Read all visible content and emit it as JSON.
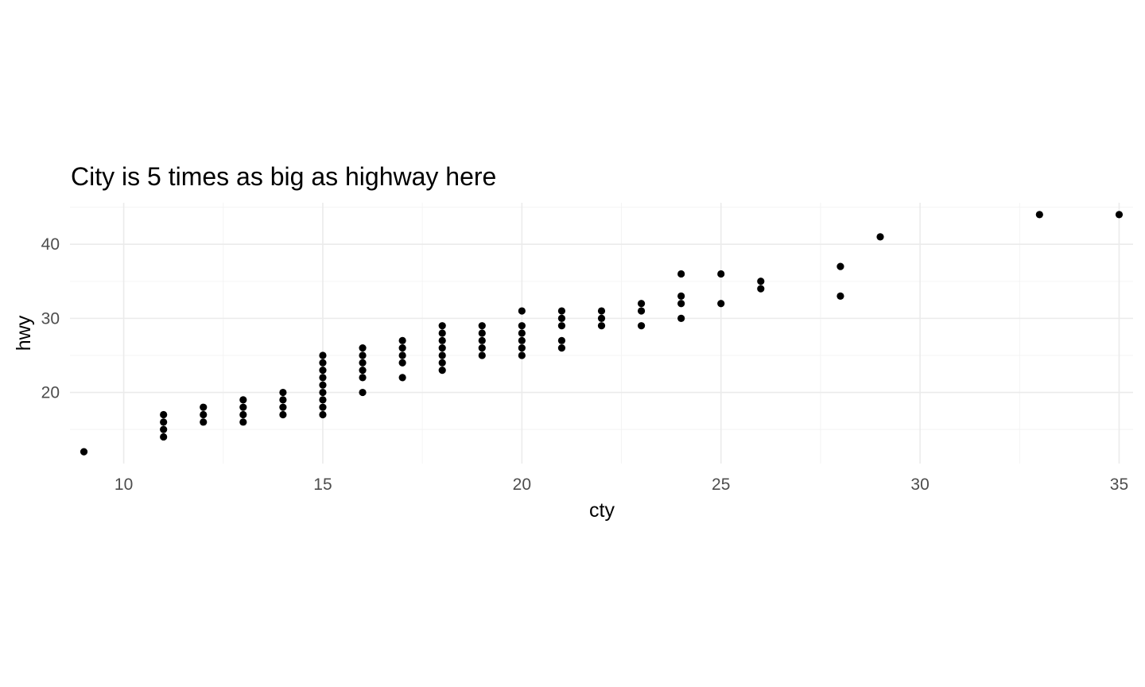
{
  "chart_data": {
    "type": "scatter",
    "title": "City is 5 times as big as highway here",
    "xlabel": "cty",
    "ylabel": "hwy",
    "xlim": [
      8.65,
      35.35
    ],
    "ylim": [
      10.4,
      45.6
    ],
    "x_ticks": [
      10,
      15,
      20,
      25,
      30,
      35
    ],
    "y_ticks": [
      20,
      30,
      40
    ],
    "x_minor_ticks": [
      12.5,
      17.5,
      22.5,
      27.5,
      32.5
    ],
    "y_minor_ticks": [
      15,
      25,
      35,
      45
    ],
    "grid": true,
    "legend": "none",
    "point_color": "#000000",
    "points": [
      {
        "x": 9,
        "y": 12
      },
      {
        "x": 11,
        "y": 14
      },
      {
        "x": 11,
        "y": 15
      },
      {
        "x": 11,
        "y": 16
      },
      {
        "x": 11,
        "y": 17
      },
      {
        "x": 12,
        "y": 16
      },
      {
        "x": 12,
        "y": 17
      },
      {
        "x": 12,
        "y": 18
      },
      {
        "x": 13,
        "y": 16
      },
      {
        "x": 13,
        "y": 17
      },
      {
        "x": 13,
        "y": 18
      },
      {
        "x": 13,
        "y": 19
      },
      {
        "x": 14,
        "y": 17
      },
      {
        "x": 14,
        "y": 18
      },
      {
        "x": 14,
        "y": 19
      },
      {
        "x": 14,
        "y": 20
      },
      {
        "x": 15,
        "y": 17
      },
      {
        "x": 15,
        "y": 18
      },
      {
        "x": 15,
        "y": 19
      },
      {
        "x": 15,
        "y": 20
      },
      {
        "x": 15,
        "y": 21
      },
      {
        "x": 15,
        "y": 22
      },
      {
        "x": 15,
        "y": 23
      },
      {
        "x": 15,
        "y": 24
      },
      {
        "x": 15,
        "y": 25
      },
      {
        "x": 16,
        "y": 20
      },
      {
        "x": 16,
        "y": 22
      },
      {
        "x": 16,
        "y": 23
      },
      {
        "x": 16,
        "y": 24
      },
      {
        "x": 16,
        "y": 25
      },
      {
        "x": 16,
        "y": 26
      },
      {
        "x": 17,
        "y": 22
      },
      {
        "x": 17,
        "y": 24
      },
      {
        "x": 17,
        "y": 25
      },
      {
        "x": 17,
        "y": 26
      },
      {
        "x": 17,
        "y": 27
      },
      {
        "x": 18,
        "y": 23
      },
      {
        "x": 18,
        "y": 24
      },
      {
        "x": 18,
        "y": 25
      },
      {
        "x": 18,
        "y": 26
      },
      {
        "x": 18,
        "y": 27
      },
      {
        "x": 18,
        "y": 28
      },
      {
        "x": 18,
        "y": 29
      },
      {
        "x": 19,
        "y": 25
      },
      {
        "x": 19,
        "y": 26
      },
      {
        "x": 19,
        "y": 27
      },
      {
        "x": 19,
        "y": 28
      },
      {
        "x": 19,
        "y": 29
      },
      {
        "x": 20,
        "y": 25
      },
      {
        "x": 20,
        "y": 26
      },
      {
        "x": 20,
        "y": 27
      },
      {
        "x": 20,
        "y": 28
      },
      {
        "x": 20,
        "y": 29
      },
      {
        "x": 20,
        "y": 31
      },
      {
        "x": 21,
        "y": 26
      },
      {
        "x": 21,
        "y": 27
      },
      {
        "x": 21,
        "y": 29
      },
      {
        "x": 21,
        "y": 30
      },
      {
        "x": 21,
        "y": 31
      },
      {
        "x": 22,
        "y": 29
      },
      {
        "x": 22,
        "y": 30
      },
      {
        "x": 22,
        "y": 31
      },
      {
        "x": 23,
        "y": 29
      },
      {
        "x": 23,
        "y": 31
      },
      {
        "x": 23,
        "y": 32
      },
      {
        "x": 24,
        "y": 30
      },
      {
        "x": 24,
        "y": 32
      },
      {
        "x": 24,
        "y": 33
      },
      {
        "x": 24,
        "y": 36
      },
      {
        "x": 25,
        "y": 32
      },
      {
        "x": 25,
        "y": 36
      },
      {
        "x": 26,
        "y": 34
      },
      {
        "x": 26,
        "y": 35
      },
      {
        "x": 28,
        "y": 33
      },
      {
        "x": 28,
        "y": 37
      },
      {
        "x": 29,
        "y": 41
      },
      {
        "x": 33,
        "y": 44
      },
      {
        "x": 35,
        "y": 44
      }
    ]
  }
}
